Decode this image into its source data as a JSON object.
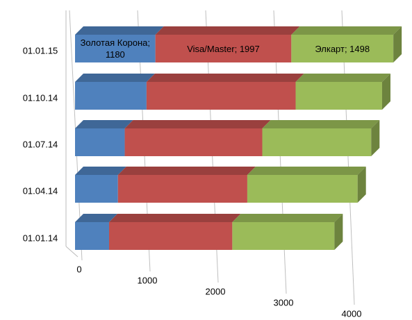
{
  "chart_data": {
    "type": "bar3d_stacked_horizontal",
    "categories": [
      "01.01.15",
      "01.10.14",
      "01.07.14",
      "01.04.14",
      "01.01.14"
    ],
    "series": [
      {
        "color": "#4f81bd",
        "values": [
          1180,
          1050,
          730,
          630,
          500
        ],
        "value_labels": [
          "Золотая Корона; 1180",
          null,
          null,
          null,
          null
        ]
      },
      {
        "color": "#c0504d",
        "values": [
          1997,
          2190,
          2020,
          1900,
          1810
        ],
        "value_labels": [
          "Visa/Master; 1997",
          null,
          null,
          null,
          null
        ]
      },
      {
        "color": "#9bbb59",
        "values": [
          1498,
          1270,
          1600,
          1620,
          1500
        ],
        "value_labels": [
          "Элкарт; 1498",
          null,
          null,
          null,
          null
        ]
      }
    ],
    "xlim": [
      0,
      4000
    ],
    "xticks": [
      0,
      1000,
      2000,
      3000,
      4000
    ],
    "grid": true
  }
}
